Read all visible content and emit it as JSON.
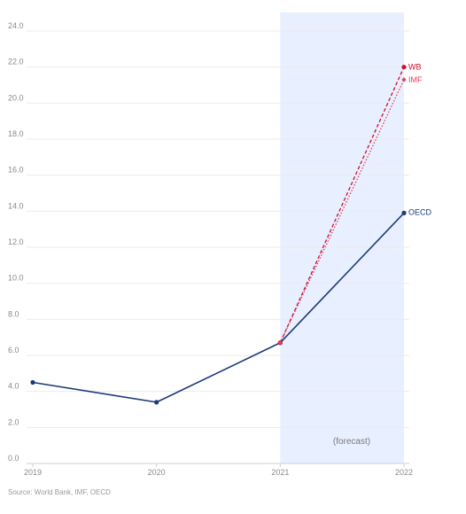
{
  "chart_data": {
    "type": "line",
    "x": [
      "2019",
      "2020",
      "2021",
      "2022"
    ],
    "ylim": [
      0,
      24
    ],
    "yticks": [
      "0.0",
      "2.0",
      "4.0",
      "6.0",
      "8.0",
      "10.0",
      "12.0",
      "14.0",
      "16.0",
      "18.0",
      "20.0",
      "22.0",
      "24.0"
    ],
    "grid": true,
    "forecast_region": {
      "from": "2021",
      "to": "2022",
      "color": "#e8efff"
    },
    "annotation": "(forecast)",
    "series": [
      {
        "name": "OECD",
        "x": [
          "2019",
          "2020",
          "2021",
          "2022"
        ],
        "values": [
          4.5,
          3.4,
          6.7,
          13.9
        ],
        "color": "#1c3a7a",
        "style": "solid"
      },
      {
        "name": "WB",
        "x": [
          "2021",
          "2022"
        ],
        "values": [
          6.7,
          22.0
        ],
        "color": "#c8102e",
        "style": "dashed"
      },
      {
        "name": "IMF",
        "x": [
          "2021",
          "2022"
        ],
        "values": [
          6.7,
          21.3
        ],
        "color": "#e0405a",
        "style": "dotted"
      }
    ]
  },
  "source": "Source: World Bank, IMF, OECD"
}
